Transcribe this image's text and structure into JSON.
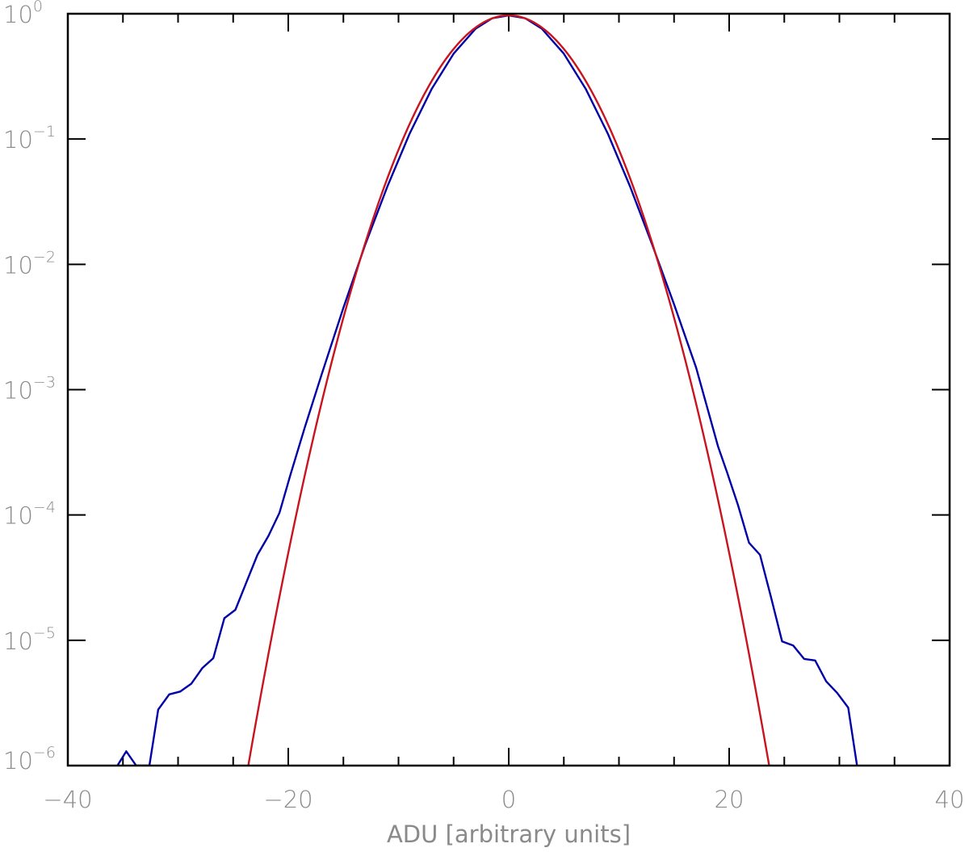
{
  "chart_data": {
    "type": "line",
    "xlabel": "ADU [arbitrary units]",
    "ylabel": "",
    "xlim": [
      -40,
      40
    ],
    "ylim": [
      1e-06,
      1
    ],
    "yscale": "log",
    "grid": false,
    "x_ticks": [
      -40,
      -20,
      0,
      20,
      40
    ],
    "x_tick_labels": [
      "−40",
      "−20",
      "0",
      "20",
      "40"
    ],
    "y_ticks": [
      1,
      0.1,
      0.01,
      0.001,
      0.0001,
      1e-05,
      1e-06
    ],
    "y_tick_labels": [
      {
        "base": "10",
        "exp": "0"
      },
      {
        "base": "10",
        "exp": "−1"
      },
      {
        "base": "10",
        "exp": "−2"
      },
      {
        "base": "10",
        "exp": "−3"
      },
      {
        "base": "10",
        "exp": "−4"
      },
      {
        "base": "10",
        "exp": "−5"
      },
      {
        "base": "10",
        "exp": "−6"
      }
    ],
    "series": [
      {
        "color": "#0000a8",
        "points": [
          [
            -35.5,
            1e-06
          ],
          [
            -34.7,
            1.3e-06
          ],
          [
            -33.8,
            1e-06
          ],
          [
            -32.6,
            1e-06
          ],
          [
            -31.8,
            2.8e-06
          ],
          [
            -30.8,
            3.7e-06
          ],
          [
            -29.8,
            3.9e-06
          ],
          [
            -28.8,
            4.5e-06
          ],
          [
            -27.8,
            6e-06
          ],
          [
            -26.8,
            7.2e-06
          ],
          [
            -25.8,
            1.5e-05
          ],
          [
            -24.8,
            1.75e-05
          ],
          [
            -23.8,
            2.9e-05
          ],
          [
            -22.8,
            4.8e-05
          ],
          [
            -21.8,
            6.8e-05
          ],
          [
            -20.8,
            0.000104
          ],
          [
            -19.8,
            0.00021
          ],
          [
            -18.5,
            0.0005
          ],
          [
            -17,
            0.0013
          ],
          [
            -15,
            0.0045
          ],
          [
            -13,
            0.0145
          ],
          [
            -11,
            0.042
          ],
          [
            -9,
            0.11
          ],
          [
            -7,
            0.25
          ],
          [
            -5,
            0.48
          ],
          [
            -3,
            0.76
          ],
          [
            -1.5,
            0.92
          ],
          [
            0,
            0.97
          ],
          [
            1.5,
            0.92
          ],
          [
            3,
            0.76
          ],
          [
            5,
            0.48
          ],
          [
            7,
            0.25
          ],
          [
            9,
            0.11
          ],
          [
            11,
            0.042
          ],
          [
            13,
            0.0145
          ],
          [
            15,
            0.0048
          ],
          [
            17,
            0.0015
          ],
          [
            19,
            0.00035
          ],
          [
            19.8,
            0.00022
          ],
          [
            20.8,
            0.00012
          ],
          [
            21.8,
            6e-05
          ],
          [
            22.8,
            4.8e-05
          ],
          [
            23.8,
            2.2e-05
          ],
          [
            24.8,
            9.8e-06
          ],
          [
            25.8,
            9.1e-06
          ],
          [
            26.8,
            7.1e-06
          ],
          [
            27.8,
            6.9e-06
          ],
          [
            28.8,
            4.7e-06
          ],
          [
            29.8,
            3.8e-06
          ],
          [
            30.8,
            2.9e-06
          ],
          [
            31.6,
            1e-06
          ]
        ]
      },
      {
        "color": "#c8141e",
        "gaussian": {
          "amplitude": 0.97,
          "mean": 0,
          "sigma": 4.5
        },
        "x_range": [
          -23.8,
          23.8
        ]
      }
    ]
  }
}
